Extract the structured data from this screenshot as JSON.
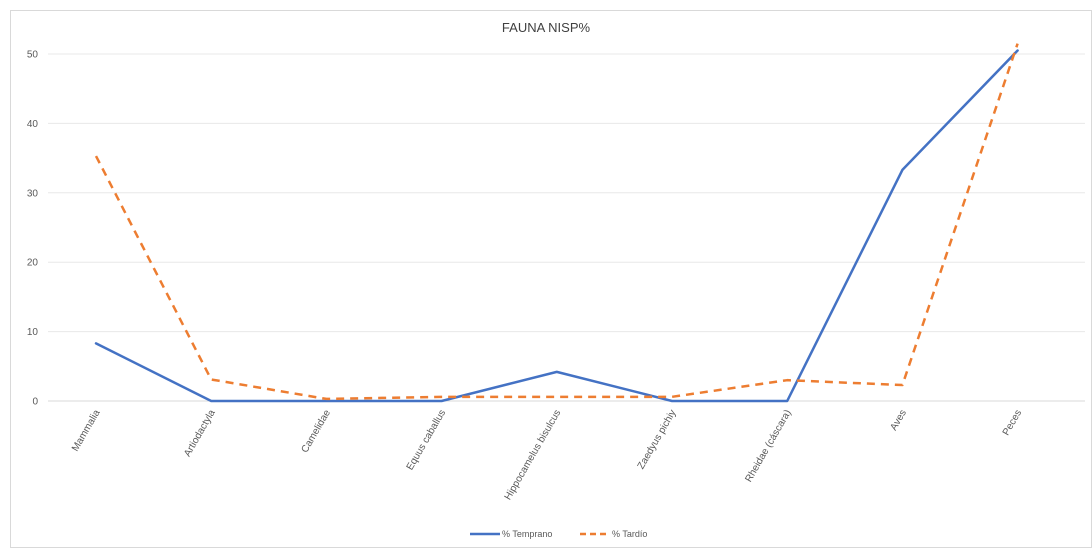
{
  "chart_data": {
    "type": "line",
    "title": "FAUNA NISP%",
    "categories": [
      "Mammalia",
      "Artiodactyla",
      "Camelidae",
      "Equus caballus",
      "Hippocamelus bisulcus",
      "Zaedyus pichiy",
      "Rheidae (cáscara)",
      "Aves",
      "Peces"
    ],
    "ylim": [
      0,
      50
    ],
    "yticks": [
      0,
      10,
      20,
      30,
      40,
      50
    ],
    "grid": true,
    "legend_position": "bottom",
    "series": [
      {
        "name": "% Temprano",
        "color": "#4472c4",
        "dash": "solid",
        "values": [
          8.3,
          0,
          0,
          0,
          4.2,
          0,
          0,
          33.3,
          50.5
        ]
      },
      {
        "name": "% Tardío",
        "color": "#ed7d31",
        "dash": "dashed",
        "values": [
          35.3,
          3.1,
          0.3,
          0.6,
          0.6,
          0.6,
          3.0,
          2.3,
          51.5
        ]
      }
    ]
  }
}
